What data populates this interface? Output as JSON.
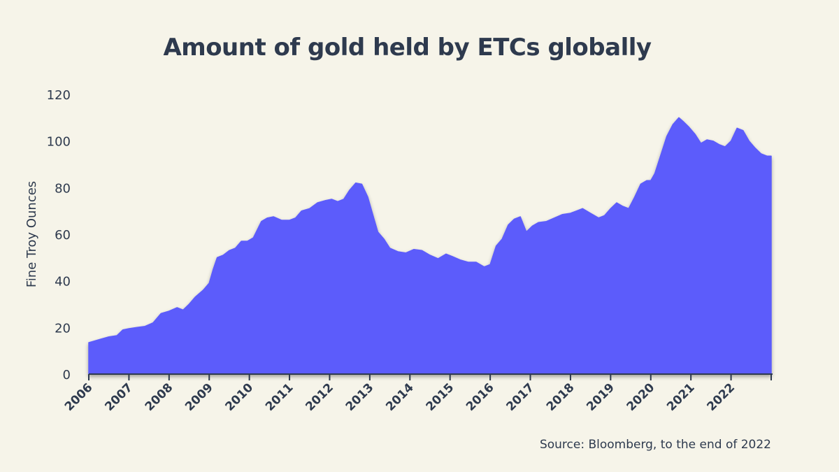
{
  "chart_data": {
    "type": "area",
    "title": "Amount of gold held by ETCs globally",
    "xlabel": "",
    "ylabel": "Fine Troy Ounces",
    "source": "Source: Bloomberg, to the end of 2022",
    "ylim": [
      0,
      120
    ],
    "xlim": [
      2006,
      2023
    ],
    "yticks": [
      "0",
      "20",
      "40",
      "60",
      "80",
      "100",
      "120"
    ],
    "xticks": [
      "2006",
      "2007",
      "2008",
      "2009",
      "2010",
      "2011",
      "2012",
      "2013",
      "2014",
      "2015",
      "2016",
      "2017",
      "2018",
      "2019",
      "2020",
      "2021",
      "2022"
    ],
    "grid": false,
    "fill_color": "#5c5cfb",
    "x": [
      2006.0,
      2006.1,
      2006.3,
      2006.5,
      2006.7,
      2006.85,
      2007.0,
      2007.2,
      2007.4,
      2007.6,
      2007.8,
      2008.0,
      2008.2,
      2008.35,
      2008.5,
      2008.65,
      2008.85,
      2009.0,
      2009.1,
      2009.2,
      2009.35,
      2009.5,
      2009.65,
      2009.8,
      2009.95,
      2010.1,
      2010.3,
      2010.45,
      2010.6,
      2010.8,
      2011.0,
      2011.15,
      2011.3,
      2011.5,
      2011.7,
      2011.9,
      2012.05,
      2012.2,
      2012.35,
      2012.5,
      2012.65,
      2012.8,
      2012.95,
      2013.1,
      2013.2,
      2013.35,
      2013.5,
      2013.7,
      2013.9,
      2014.1,
      2014.3,
      2014.5,
      2014.7,
      2014.9,
      2015.05,
      2015.25,
      2015.45,
      2015.65,
      2015.85,
      2016.0,
      2016.15,
      2016.3,
      2016.45,
      2016.6,
      2016.75,
      2016.9,
      2017.05,
      2017.2,
      2017.4,
      2017.6,
      2017.8,
      2018.0,
      2018.15,
      2018.3,
      2018.5,
      2018.7,
      2018.85,
      2019.0,
      2019.15,
      2019.3,
      2019.45,
      2019.6,
      2019.75,
      2019.9,
      2020.0,
      2020.1,
      2020.25,
      2020.4,
      2020.55,
      2020.7,
      2020.8,
      2020.95,
      2021.1,
      2021.25,
      2021.4,
      2021.55,
      2021.7,
      2021.85,
      2022.0,
      2022.15,
      2022.3,
      2022.45,
      2022.6,
      2022.75,
      2022.9,
      2023.0
    ],
    "values": [
      13.5,
      14,
      15,
      16,
      16.5,
      19,
      19.5,
      20,
      20.5,
      22,
      26,
      27,
      28.5,
      27.5,
      30,
      33,
      36,
      39,
      45,
      50,
      51,
      53,
      54,
      57,
      57,
      58.5,
      65.5,
      67,
      67.5,
      66,
      66,
      67,
      70,
      71,
      73.5,
      74.5,
      75,
      74,
      75,
      79,
      82,
      81.5,
      76,
      67,
      61,
      58,
      54,
      52.5,
      52,
      53.5,
      53,
      51,
      49.5,
      51.5,
      50.5,
      49,
      48,
      48,
      46,
      47,
      55,
      58,
      64,
      66.5,
      67.5,
      61,
      63.5,
      65,
      65.5,
      67,
      68.5,
      69,
      70,
      71,
      69,
      67,
      68,
      71,
      73.5,
      72,
      71,
      76,
      81.5,
      83,
      83,
      86,
      94,
      102,
      107,
      110,
      108.5,
      106,
      103,
      99,
      100.5,
      100,
      98.5,
      97.5,
      100,
      105.5,
      104.5,
      100,
      97,
      94.5,
      93.5,
      93.5
    ]
  }
}
